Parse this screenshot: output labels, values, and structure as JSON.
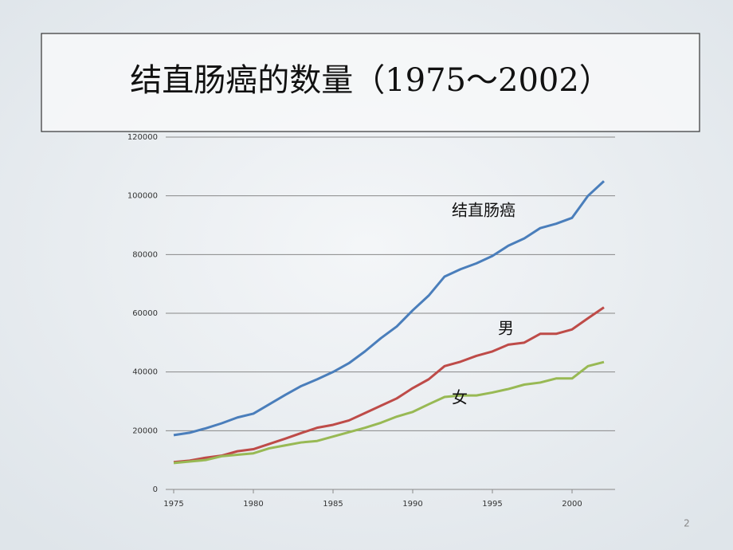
{
  "slide_title": "结直肠癌的数量（1975～2002）",
  "page_number": "2",
  "chart_data": {
    "type": "line",
    "x": [
      1975,
      1976,
      1977,
      1978,
      1979,
      1980,
      1981,
      1982,
      1983,
      1984,
      1985,
      1986,
      1987,
      1988,
      1989,
      1990,
      1991,
      1992,
      1993,
      1994,
      1995,
      1996,
      1997,
      1998,
      1999,
      2000,
      2001,
      2002
    ],
    "series": [
      {
        "name": "结直肠癌",
        "color": "#4a7ebb",
        "values": [
          18500,
          19300,
          20800,
          22500,
          24500,
          25800,
          29000,
          32200,
          35200,
          37500,
          40000,
          43000,
          47000,
          51500,
          55500,
          61000,
          66000,
          72500,
          75000,
          77000,
          79500,
          83000,
          85500,
          89000,
          90500,
          92500,
          100000,
          105000
        ]
      },
      {
        "name": "男",
        "color": "#be4b48",
        "values": [
          9300,
          9800,
          10800,
          11500,
          13000,
          13700,
          15500,
          17300,
          19200,
          21000,
          22000,
          23500,
          26000,
          28500,
          31000,
          34500,
          37500,
          42000,
          43500,
          45500,
          47000,
          49300,
          50000,
          53000,
          53000,
          54500,
          58300,
          62000
        ]
      },
      {
        "name": "女",
        "color": "#98b954",
        "values": [
          9000,
          9500,
          10000,
          11300,
          11800,
          12300,
          14000,
          15000,
          16000,
          16500,
          18000,
          19500,
          21000,
          22700,
          24800,
          26400,
          29000,
          31500,
          32000,
          32000,
          33000,
          34200,
          35700,
          36400,
          37800,
          37800,
          42000,
          43400
        ]
      }
    ],
    "xlim": [
      1974.5,
      2002.7
    ],
    "xticks": [
      1975,
      1980,
      1985,
      1990,
      1995,
      2000
    ],
    "ylim": [
      0,
      120000
    ],
    "yticks": [
      0,
      20000,
      40000,
      60000,
      80000,
      100000,
      120000
    ],
    "grid": true
  }
}
